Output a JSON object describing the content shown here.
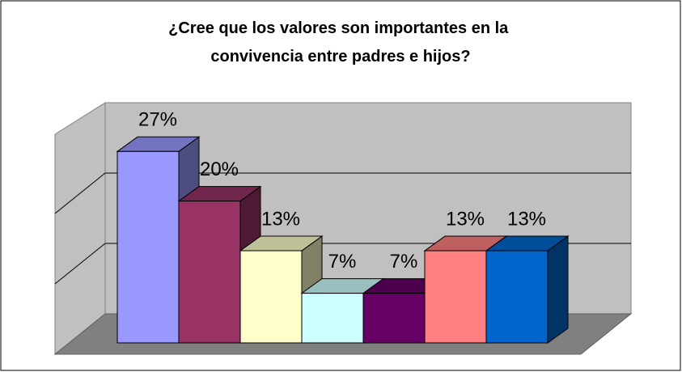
{
  "chart_data": {
    "type": "bar3d",
    "title": "¿Cree que los valores son importantes en la convivencia entre padres e hijos?",
    "categories": [
      null,
      null,
      null,
      null,
      null,
      null,
      null
    ],
    "values": [
      27,
      20,
      13,
      7,
      7,
      13,
      13
    ],
    "value_labels": [
      "27%",
      "20%",
      "13%",
      "7%",
      "7%",
      "13%",
      "13%"
    ],
    "colors": [
      "#9999ff",
      "#993366",
      "#ffffcc",
      "#ccffff",
      "#660066",
      "#ff8080",
      "#0066cc"
    ],
    "ylim": [
      0,
      30
    ],
    "yticks": [
      0,
      10,
      20,
      30
    ],
    "grid": true
  }
}
